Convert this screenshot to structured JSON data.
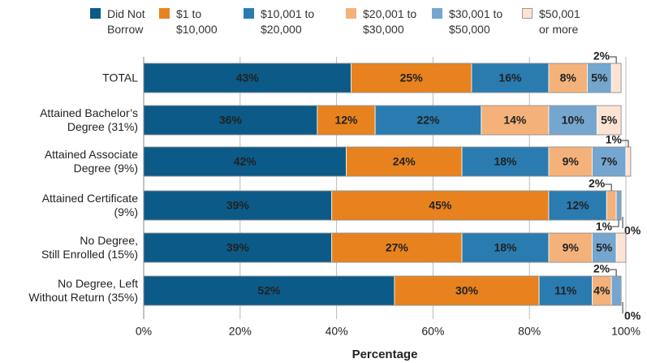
{
  "chart_data": {
    "type": "stacked_barh",
    "xlabel": "Percentage",
    "categories": [
      "TOTAL",
      "Attained Bachelor’s\nDegree (31%)",
      "Attained Associate\nDegree (9%)",
      "Attained Certificate\n(9%)",
      "No Degree,\nStill Enrolled (15%)",
      "No Degree, Left\nWithout Return (35%)"
    ],
    "series": [
      {
        "name": "Did Not\nBorrow",
        "color": "#0b5a87",
        "label_color": "#ffffff",
        "values": [
          43,
          36,
          42,
          39,
          39,
          52
        ],
        "value_labels": [
          "43%",
          "36%",
          "42%",
          "39%",
          "39%",
          "52%"
        ]
      },
      {
        "name": "$1 to\n$10,000",
        "color": "#e8821e",
        "label_color": "#222222",
        "values": [
          25,
          12,
          24,
          45,
          27,
          30
        ],
        "value_labels": [
          "25%",
          "12%",
          "24%",
          "45%",
          "27%",
          "30%"
        ]
      },
      {
        "name": "$10,001 to\n$20,000",
        "color": "#2a7bb0",
        "label_color": "#ffffff",
        "values": [
          16,
          22,
          18,
          12,
          18,
          11
        ],
        "value_labels": [
          "16%",
          "22%",
          "18%",
          "12%",
          "18%",
          "11%"
        ]
      },
      {
        "name": "$20,001 to\n$30,000",
        "color": "#f4b27a",
        "label_color": "#222222",
        "values": [
          8,
          14,
          9,
          2,
          9,
          4
        ],
        "value_labels": [
          "8%",
          "14%",
          "9%",
          "2%",
          "9%",
          "4%"
        ]
      },
      {
        "name": "$30,001 to\n$50,000",
        "color": "#74a6cf",
        "label_color": "#222222",
        "values": [
          5,
          10,
          7,
          1,
          5,
          2
        ],
        "value_labels": [
          "5%",
          "10%",
          "7%",
          "1%",
          "5%",
          "2%"
        ]
      },
      {
        "name": "$50,001\nor more",
        "color": "#fde3d3",
        "label_color": "#222222",
        "values": [
          2,
          5,
          1,
          0,
          2,
          0
        ],
        "value_labels": [
          "2%",
          "5%",
          "1%",
          "0%",
          null,
          "0%"
        ]
      }
    ],
    "xlim": [
      0,
      100
    ],
    "xticks": [
      {
        "value": 0,
        "label": "0%"
      },
      {
        "value": 20,
        "label": "20%"
      },
      {
        "value": 40,
        "label": "40%"
      },
      {
        "value": 60,
        "label": "60%"
      },
      {
        "value": 80,
        "label": "80%"
      },
      {
        "value": 100,
        "label": "100%"
      }
    ],
    "grid": true
  }
}
